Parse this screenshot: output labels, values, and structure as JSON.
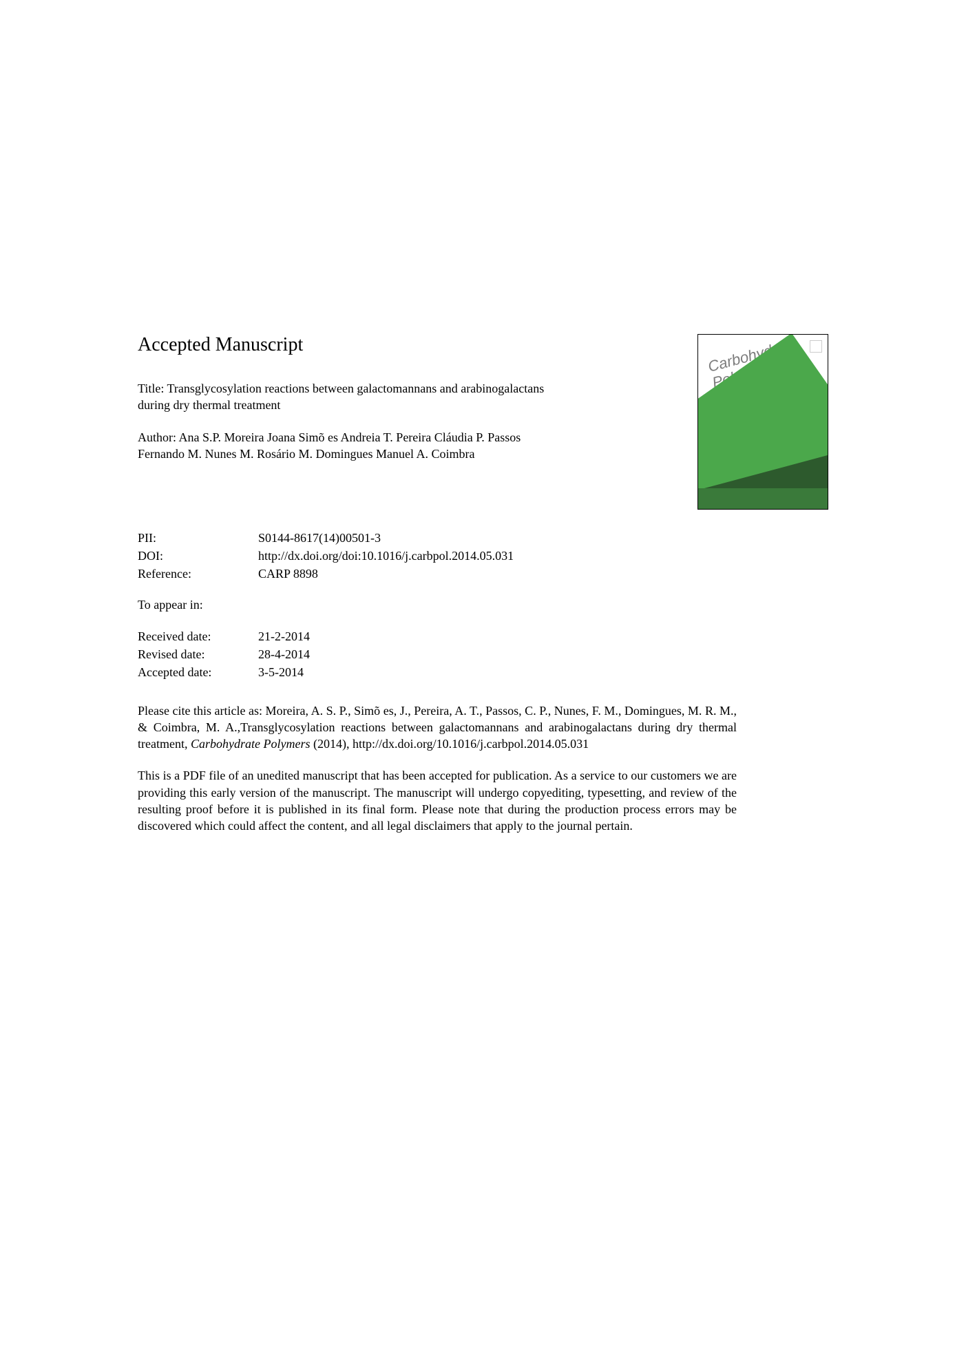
{
  "heading": "Accepted Manuscript",
  "title": {
    "label": "Title:",
    "text": "Transglycosylation reactions between galactomannans and arabinogalactans during dry thermal treatment"
  },
  "author": {
    "label": "Author:",
    "text": "Ana S.P. Moreira Joana Simõ es Andreia T. Pereira Cláudia P. Passos Fernando M. Nunes M. Rosário M. Domingues Manuel A. Coimbra"
  },
  "journalCover": {
    "title1": "Carbohydrate",
    "title2": "Polymers"
  },
  "metadata": {
    "pii": {
      "label": "PII:",
      "value": "S0144-8617(14)00501-3"
    },
    "doi": {
      "label": "DOI:",
      "value": "http://dx.doi.org/doi:10.1016/j.carbpol.2014.05.031"
    },
    "reference": {
      "label": "Reference:",
      "value": "CARP 8898"
    }
  },
  "toAppear": "To appear in:",
  "dates": {
    "received": {
      "label": "Received date:",
      "value": "21-2-2014"
    },
    "revised": {
      "label": "Revised date:",
      "value": "28-4-2014"
    },
    "accepted": {
      "label": "Accepted date:",
      "value": "3-5-2014"
    }
  },
  "citation": {
    "prefix": "Please cite this article as: Moreira, A. S. P., Simõ es, J., Pereira, A. T., Passos, C. P., Nunes, F. M., Domingues, M. R. M., & Coimbra, M. A.,Transglycosylation reactions between galactomannans and arabinogalactans during dry thermal treatment, ",
    "journalName": "Carbohydrate Polymers",
    "suffix": " (2014), http://dx.doi.org/10.1016/j.carbpol.2014.05.031"
  },
  "disclaimer": "This is a PDF file of an unedited manuscript that has been accepted for publication. As a service to our customers we are providing this early version of the manuscript. The manuscript will undergo copyediting, typesetting, and review of the resulting proof before it is published in its final form. Please note that during the production process errors may be discovered which could affect the content, and all legal disclaimers that apply to the journal pertain."
}
